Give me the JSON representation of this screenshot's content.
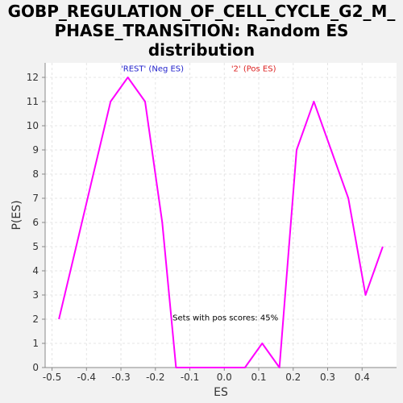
{
  "chart_data": {
    "type": "line",
    "title_lines": [
      "GOBP_REGULATION_OF_CELL_CYCLE_G2_M_",
      "PHASE_TRANSITION: Random ES",
      "distribution"
    ],
    "xlabel": "ES",
    "ylabel": "P(ES)",
    "xlim": [
      -0.52,
      0.5
    ],
    "ylim": [
      0,
      12.6
    ],
    "xticks": [
      -0.5,
      -0.4,
      -0.3,
      -0.2,
      -0.1,
      0.0,
      0.1,
      0.2,
      0.3,
      0.4
    ],
    "xtick_labels": [
      "-0.5",
      "-0.4",
      "-0.3",
      "-0.2",
      "-0.1",
      "0.0",
      "0.1",
      "0.2",
      "0.3",
      "0.4"
    ],
    "yticks": [
      0,
      1,
      2,
      3,
      4,
      5,
      6,
      7,
      8,
      9,
      10,
      11,
      12
    ],
    "ytick_labels": [
      "0",
      "1",
      "2",
      "3",
      "4",
      "5",
      "6",
      "7",
      "8",
      "9",
      "10",
      "11",
      "12"
    ],
    "grid": true,
    "series": [
      {
        "color": "#ff00ff",
        "x": [
          -0.48,
          -0.43,
          -0.38,
          -0.33,
          -0.28,
          -0.23,
          -0.18,
          -0.14,
          -0.09,
          -0.04,
          0.01,
          0.06,
          0.11,
          0.16,
          0.21,
          0.26,
          0.31,
          0.36,
          0.41,
          0.46
        ],
        "y": [
          2,
          5,
          8,
          11,
          12,
          11,
          6,
          0,
          0,
          0,
          0,
          0,
          1,
          0,
          9,
          11,
          9,
          7,
          3,
          5
        ]
      }
    ],
    "annotations": [
      {
        "text": "'REST' (Neg ES)",
        "color": "#2222cc",
        "x": -0.3,
        "y": 12.25
      },
      {
        "text": "'2' (Pos ES)",
        "color": "#dd2222",
        "x": 0.02,
        "y": 12.25
      },
      {
        "text": "Sets with pos scores: 45%",
        "color": "#000000",
        "x": -0.15,
        "y": 1.95
      }
    ]
  }
}
